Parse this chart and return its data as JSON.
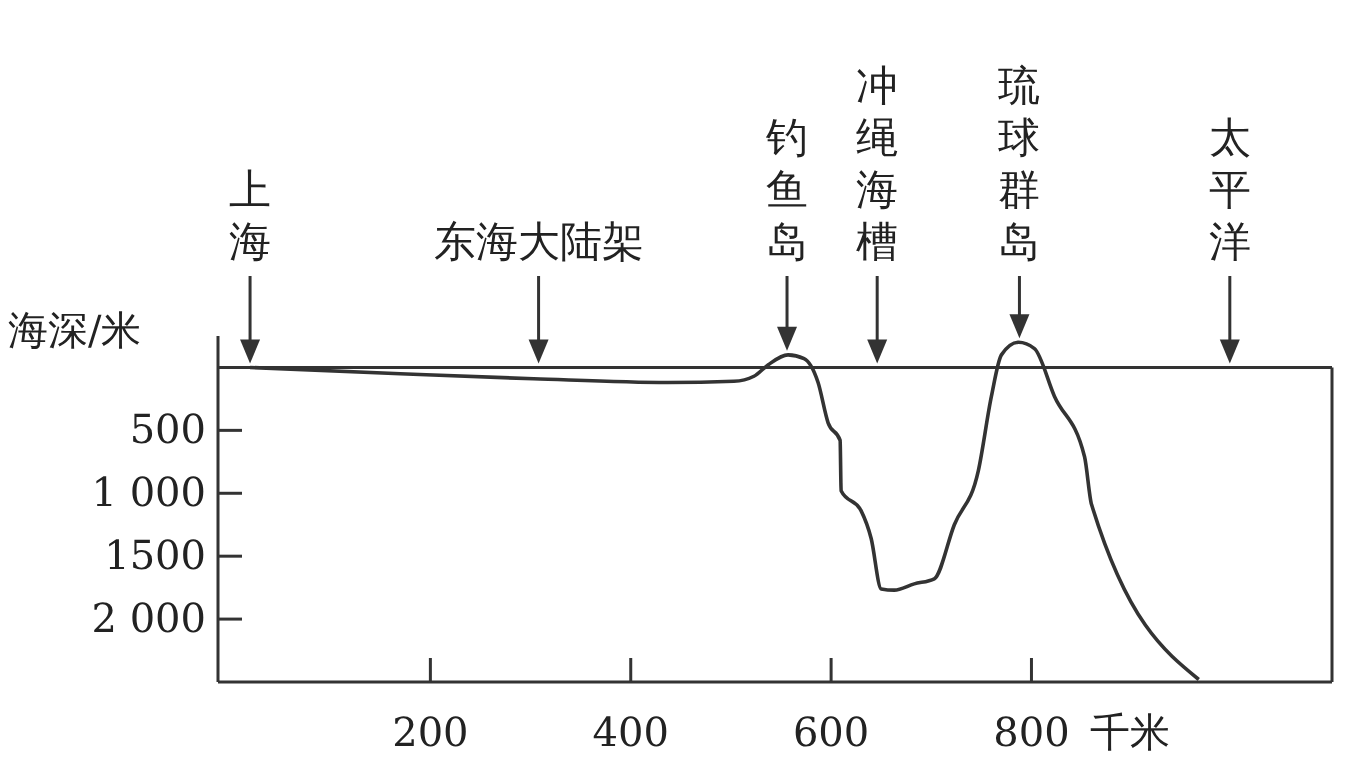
{
  "chart_data": {
    "type": "line",
    "ylabel": "海深/米",
    "xlabel": "千米",
    "xlim": [
      -12,
      1100
    ],
    "xticks": [
      200,
      400,
      600,
      800
    ],
    "ylim": [
      2500,
      -250
    ],
    "yticks": [
      500,
      {
        "value": 1000,
        "label": "1 000"
      },
      1500,
      {
        "value": 2000,
        "label": "2 000"
      }
    ],
    "x": [
      20,
      170,
      303,
      437,
      503,
      523,
      537,
      557,
      573,
      587,
      597,
      609,
      610,
      630,
      640,
      650,
      663,
      683,
      703,
      723,
      747,
      760,
      770,
      787,
      803,
      823,
      853,
      860,
      967
    ],
    "series": [
      {
        "color": "#333333",
        "values": [
          0,
          50,
          90,
          120,
          110,
          70,
          -20,
          -100,
          -70,
          120,
          440,
          580,
          980,
          1140,
          1360,
          1760,
          1770,
          1720,
          1680,
          1250,
          820,
          230,
          -100,
          -200,
          -150,
          230,
          710,
          1090,
          2480
        ]
      }
    ],
    "ref_lines": [
      {
        "axis": "y",
        "value": 0,
        "color": "#333333"
      }
    ],
    "annotations": [
      {
        "text": "上海",
        "x": 20,
        "y": 0
      },
      {
        "text": "东海大陆架",
        "x": 308,
        "y": 0
      },
      {
        "text": "钓鱼岛",
        "x": 556,
        "y": -100
      },
      {
        "text": "冲绳海槽",
        "x": 646,
        "y": 0
      },
      {
        "text": "琉球群岛",
        "x": 788,
        "y": -200
      },
      {
        "text": "太平洋",
        "x": 998,
        "y": 0
      }
    ],
    "grid": false,
    "marker": "none",
    "line_style": "solid"
  }
}
